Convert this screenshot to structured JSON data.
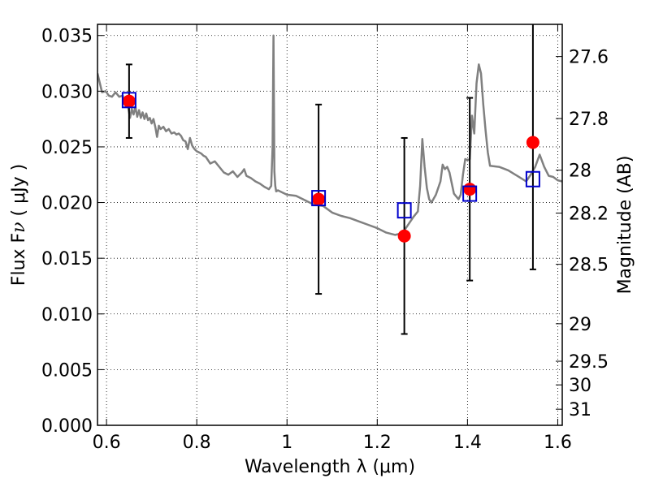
{
  "chart_data": {
    "type": "scatter",
    "xlabel": "Wavelength  λ (μm)",
    "ylabel": "Flux  F_ν  ( μJy )",
    "ylabel_right": "Magnitude (AB)",
    "xlim": [
      0.58,
      1.61
    ],
    "ylim": [
      0.0,
      0.036
    ],
    "grid": true,
    "x_ticks": [
      0.6,
      0.8,
      1.0,
      1.2,
      1.4,
      1.6
    ],
    "x_tick_labels": [
      "0.6",
      "0.8",
      "1",
      "1.2",
      "1.4",
      "1.6"
    ],
    "y_ticks": [
      0.0,
      0.005,
      0.01,
      0.015,
      0.02,
      0.025,
      0.03,
      0.035
    ],
    "y_tick_labels": [
      "0.000",
      "0.005",
      "0.010",
      "0.015",
      "0.020",
      "0.025",
      "0.030",
      "0.035"
    ],
    "right_ticks": [
      {
        "label": "27.6",
        "mag": 27.6
      },
      {
        "label": "27.8",
        "mag": 27.8
      },
      {
        "label": "28",
        "mag": 28.0
      },
      {
        "label": "28.2",
        "mag": 28.2
      },
      {
        "label": "28.5",
        "mag": 28.5
      },
      {
        "label": "29",
        "mag": 29.0
      },
      {
        "label": "29.5",
        "mag": 29.5
      },
      {
        "label": "30",
        "mag": 30.0
      },
      {
        "label": "31",
        "mag": 31.0
      }
    ],
    "model_spectrum": {
      "color": "#808080",
      "x": [
        0.58,
        0.59,
        0.598,
        0.605,
        0.612,
        0.62,
        0.628,
        0.636,
        0.642,
        0.646,
        0.652,
        0.656,
        0.66,
        0.664,
        0.668,
        0.672,
        0.676,
        0.68,
        0.684,
        0.688,
        0.692,
        0.696,
        0.7,
        0.704,
        0.708,
        0.712,
        0.716,
        0.72,
        0.726,
        0.732,
        0.738,
        0.744,
        0.75,
        0.755,
        0.76,
        0.765,
        0.77,
        0.775,
        0.78,
        0.785,
        0.79,
        0.795,
        0.8,
        0.805,
        0.81,
        0.815,
        0.82,
        0.83,
        0.84,
        0.85,
        0.86,
        0.87,
        0.88,
        0.89,
        0.9,
        0.905,
        0.91,
        0.92,
        0.93,
        0.94,
        0.95,
        0.96,
        0.965,
        0.968,
        0.97,
        0.972,
        0.974,
        0.976,
        0.98,
        0.99,
        1.0,
        1.02,
        1.04,
        1.06,
        1.08,
        1.1,
        1.12,
        1.14,
        1.16,
        1.18,
        1.2,
        1.22,
        1.24,
        1.25,
        1.26,
        1.27,
        1.28,
        1.29,
        1.295,
        1.3,
        1.305,
        1.31,
        1.315,
        1.32,
        1.33,
        1.34,
        1.345,
        1.35,
        1.355,
        1.36,
        1.37,
        1.38,
        1.385,
        1.39,
        1.395,
        1.4,
        1.405,
        1.41,
        1.415,
        1.42,
        1.425,
        1.43,
        1.435,
        1.44,
        1.445,
        1.45,
        1.47,
        1.49,
        1.51,
        1.53,
        1.54,
        1.55,
        1.56,
        1.57,
        1.58,
        1.59,
        1.6,
        1.61
      ],
      "y": [
        0.0316,
        0.0299,
        0.03,
        0.0296,
        0.0295,
        0.0299,
        0.0295,
        0.0296,
        0.0287,
        0.029,
        0.0276,
        0.0284,
        0.0279,
        0.0286,
        0.0277,
        0.0283,
        0.0276,
        0.0281,
        0.0275,
        0.028,
        0.0274,
        0.0276,
        0.0271,
        0.0275,
        0.0268,
        0.0259,
        0.0269,
        0.0266,
        0.0268,
        0.0264,
        0.0266,
        0.0262,
        0.0263,
        0.0261,
        0.0262,
        0.026,
        0.0256,
        0.0255,
        0.0248,
        0.0258,
        0.0251,
        0.0248,
        0.0246,
        0.0245,
        0.0244,
        0.0242,
        0.0241,
        0.0235,
        0.0237,
        0.0232,
        0.0227,
        0.0225,
        0.0228,
        0.0223,
        0.0227,
        0.023,
        0.0224,
        0.0222,
        0.0219,
        0.0217,
        0.0214,
        0.0212,
        0.0215,
        0.025,
        0.035,
        0.0228,
        0.0215,
        0.021,
        0.0211,
        0.0209,
        0.0207,
        0.0206,
        0.0202,
        0.0198,
        0.0197,
        0.0191,
        0.0188,
        0.0186,
        0.0183,
        0.018,
        0.0177,
        0.0173,
        0.0171,
        0.0172,
        0.0175,
        0.0181,
        0.0187,
        0.0192,
        0.0215,
        0.0257,
        0.0232,
        0.0213,
        0.0203,
        0.02,
        0.0207,
        0.0219,
        0.0234,
        0.023,
        0.0232,
        0.0227,
        0.0208,
        0.0203,
        0.0207,
        0.0225,
        0.0239,
        0.0238,
        0.0239,
        0.0278,
        0.0262,
        0.0307,
        0.0324,
        0.0316,
        0.0288,
        0.0265,
        0.0245,
        0.0233,
        0.0232,
        0.0229,
        0.0224,
        0.0219,
        0.0225,
        0.0232,
        0.0243,
        0.0232,
        0.0224,
        0.0223,
        0.022,
        0.0219
      ]
    },
    "observed": {
      "color": "#ff0000",
      "points": [
        {
          "x": 0.65,
          "y": 0.0291,
          "err": 0.0033
        },
        {
          "x": 1.07,
          "y": 0.0203,
          "err": 0.0085
        },
        {
          "x": 1.26,
          "y": 0.017,
          "err": 0.0088
        },
        {
          "x": 1.405,
          "y": 0.0212,
          "err": 0.0082
        },
        {
          "x": 1.545,
          "y": 0.0254,
          "err": 0.0114
        }
      ]
    },
    "model_photometry": {
      "color": "#0000cc",
      "points": [
        {
          "x": 0.65,
          "y": 0.0292
        },
        {
          "x": 1.07,
          "y": 0.0204
        },
        {
          "x": 1.26,
          "y": 0.0193
        },
        {
          "x": 1.405,
          "y": 0.0208
        },
        {
          "x": 1.545,
          "y": 0.0221
        }
      ]
    }
  }
}
